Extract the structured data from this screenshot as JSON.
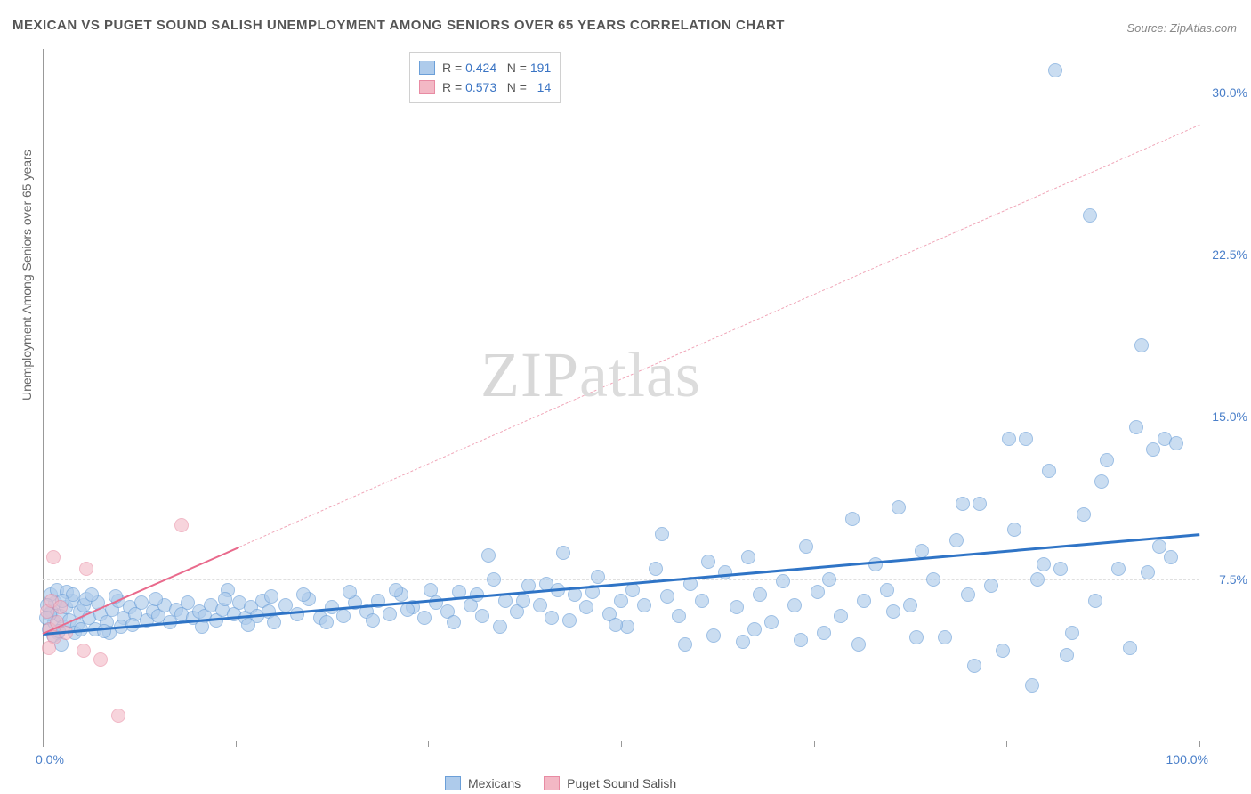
{
  "title": "MEXICAN VS PUGET SOUND SALISH UNEMPLOYMENT AMONG SENIORS OVER 65 YEARS CORRELATION CHART",
  "source": "Source: ZipAtlas.com",
  "ylabel": "Unemployment Among Seniors over 65 years",
  "watermark_a": "ZIP",
  "watermark_b": "atlas",
  "chart": {
    "type": "scatter",
    "xlim": [
      0,
      100
    ],
    "ylim": [
      0,
      32
    ],
    "yticks": [
      7.5,
      15.0,
      22.5,
      30.0
    ],
    "ytick_labels": [
      "7.5%",
      "15.0%",
      "22.5%",
      "30.0%"
    ],
    "xlim_labels": [
      "0.0%",
      "100.0%"
    ],
    "xtick_positions": [
      0,
      16.67,
      33.33,
      50,
      66.67,
      83.33,
      100
    ],
    "background": "#ffffff",
    "grid_color": "#e0e0e0",
    "axis_color": "#999999",
    "label_color": "#4a7fc9",
    "marker_radius": 8,
    "marker_stroke": 1.2
  },
  "series": [
    {
      "name": "Mexicans",
      "fill": "#aecbeb",
      "stroke": "#6b9fd8",
      "fill_opacity": 0.65,
      "r_value": "0.424",
      "n_value": "191",
      "trend": {
        "x1": 0,
        "y1": 5.0,
        "x2": 100,
        "y2": 9.6,
        "color": "#2f74c6",
        "width": 2.5
      },
      "trend_ext": null,
      "points": [
        [
          0.5,
          5.2
        ],
        [
          0.8,
          6.0
        ],
        [
          1.0,
          5.5
        ],
        [
          1.1,
          6.4
        ],
        [
          0.7,
          6.8
        ],
        [
          1.3,
          5.0
        ],
        [
          1.5,
          5.8
        ],
        [
          0.9,
          4.9
        ],
        [
          1.8,
          5.3
        ],
        [
          2.0,
          6.2
        ],
        [
          1.2,
          7.0
        ],
        [
          2.3,
          5.6
        ],
        [
          2.5,
          6.5
        ],
        [
          0.6,
          5.9
        ],
        [
          3.0,
          5.4
        ],
        [
          3.2,
          6.0
        ],
        [
          2.8,
          5.0
        ],
        [
          3.5,
          6.3
        ],
        [
          4.0,
          5.7
        ],
        [
          3.8,
          6.6
        ],
        [
          4.5,
          5.2
        ],
        [
          5.0,
          5.9
        ],
        [
          4.8,
          6.4
        ],
        [
          5.5,
          5.5
        ],
        [
          6.0,
          6.1
        ],
        [
          5.8,
          5.0
        ],
        [
          6.5,
          6.5
        ],
        [
          7.0,
          5.7
        ],
        [
          7.5,
          6.2
        ],
        [
          6.8,
          5.3
        ],
        [
          8.0,
          5.9
        ],
        [
          8.5,
          6.4
        ],
        [
          9.0,
          5.6
        ],
        [
          9.5,
          6.0
        ],
        [
          10.0,
          5.8
        ],
        [
          10.5,
          6.3
        ],
        [
          11.0,
          5.5
        ],
        [
          11.5,
          6.1
        ],
        [
          12.0,
          5.9
        ],
        [
          12.5,
          6.4
        ],
        [
          13.0,
          5.7
        ],
        [
          13.5,
          6.0
        ],
        [
          14.0,
          5.8
        ],
        [
          14.5,
          6.3
        ],
        [
          15.0,
          5.6
        ],
        [
          15.5,
          6.1
        ],
        [
          16.0,
          7.0
        ],
        [
          16.5,
          5.9
        ],
        [
          17.0,
          6.4
        ],
        [
          17.5,
          5.7
        ],
        [
          18.0,
          6.2
        ],
        [
          18.5,
          5.8
        ],
        [
          19.0,
          6.5
        ],
        [
          19.5,
          6.0
        ],
        [
          20.0,
          5.5
        ],
        [
          21.0,
          6.3
        ],
        [
          22.0,
          5.9
        ],
        [
          23.0,
          6.6
        ],
        [
          24.0,
          5.7
        ],
        [
          25.0,
          6.2
        ],
        [
          26.0,
          5.8
        ],
        [
          27.0,
          6.4
        ],
        [
          28.0,
          6.0
        ],
        [
          29.0,
          6.5
        ],
        [
          30.0,
          5.9
        ],
        [
          31.0,
          6.8
        ],
        [
          32.0,
          6.2
        ],
        [
          33.0,
          5.7
        ],
        [
          34.0,
          6.4
        ],
        [
          35.0,
          6.0
        ],
        [
          36.0,
          6.9
        ],
        [
          37.0,
          6.3
        ],
        [
          38.0,
          5.8
        ],
        [
          39.0,
          7.5
        ],
        [
          40.0,
          6.5
        ],
        [
          41.0,
          6.0
        ],
        [
          42.0,
          7.2
        ],
        [
          43.0,
          6.3
        ],
        [
          44.0,
          5.7
        ],
        [
          45.0,
          8.7
        ],
        [
          46.0,
          6.8
        ],
        [
          47.0,
          6.2
        ],
        [
          48.0,
          7.6
        ],
        [
          49.0,
          5.9
        ],
        [
          50.0,
          6.5
        ],
        [
          51.0,
          7.0
        ],
        [
          52.0,
          6.3
        ],
        [
          53.0,
          8.0
        ],
        [
          54.0,
          6.7
        ],
        [
          55.0,
          5.8
        ],
        [
          56.0,
          7.3
        ],
        [
          57.0,
          6.5
        ],
        [
          58.0,
          4.9
        ],
        [
          59.0,
          7.8
        ],
        [
          60.0,
          6.2
        ],
        [
          61.0,
          8.5
        ],
        [
          62.0,
          6.8
        ],
        [
          63.0,
          5.5
        ],
        [
          64.0,
          7.4
        ],
        [
          65.0,
          6.3
        ],
        [
          66.0,
          9.0
        ],
        [
          67.0,
          6.9
        ],
        [
          68.0,
          7.5
        ],
        [
          69.0,
          5.8
        ],
        [
          70.0,
          10.3
        ],
        [
          71.0,
          6.5
        ],
        [
          72.0,
          8.2
        ],
        [
          73.0,
          7.0
        ],
        [
          74.0,
          10.8
        ],
        [
          75.0,
          6.3
        ],
        [
          76.0,
          8.8
        ],
        [
          77.0,
          7.5
        ],
        [
          78.0,
          4.8
        ],
        [
          79.0,
          9.3
        ],
        [
          80.0,
          6.8
        ],
        [
          81.0,
          11.0
        ],
        [
          82.0,
          7.2
        ],
        [
          83.0,
          4.2
        ],
        [
          84.0,
          9.8
        ],
        [
          85.0,
          14.0
        ],
        [
          86.0,
          7.5
        ],
        [
          87.0,
          12.5
        ],
        [
          88.0,
          8.0
        ],
        [
          89.0,
          5.0
        ],
        [
          90.0,
          10.5
        ],
        [
          91.0,
          6.5
        ],
        [
          92.0,
          13.0
        ],
        [
          93.0,
          8.0
        ],
        [
          94.0,
          4.3
        ],
        [
          94.5,
          14.5
        ],
        [
          95.0,
          18.3
        ],
        [
          95.5,
          7.8
        ],
        [
          87.5,
          31.0
        ],
        [
          90.5,
          24.3
        ],
        [
          96.0,
          13.5
        ],
        [
          96.5,
          9.0
        ],
        [
          97.0,
          14.0
        ],
        [
          97.5,
          8.5
        ],
        [
          98.0,
          13.8
        ],
        [
          85.5,
          2.6
        ],
        [
          55.5,
          4.5
        ],
        [
          60.5,
          4.6
        ],
        [
          65.5,
          4.7
        ],
        [
          70.5,
          4.5
        ],
        [
          75.5,
          4.8
        ],
        [
          80.5,
          3.5
        ],
        [
          83.5,
          14.0
        ],
        [
          86.5,
          8.2
        ],
        [
          88.5,
          4.0
        ],
        [
          91.5,
          12.0
        ],
        [
          38.5,
          8.6
        ],
        [
          44.5,
          7.0
        ],
        [
          50.5,
          5.3
        ],
        [
          53.5,
          9.6
        ],
        [
          57.5,
          8.3
        ],
        [
          61.5,
          5.2
        ],
        [
          67.5,
          5.0
        ],
        [
          73.5,
          6.0
        ],
        [
          79.5,
          11.0
        ],
        [
          1.6,
          4.5
        ],
        [
          2.1,
          6.9
        ],
        [
          0.4,
          6.3
        ],
        [
          1.4,
          5.1
        ],
        [
          2.6,
          6.8
        ],
        [
          3.3,
          5.2
        ],
        [
          0.3,
          5.7
        ],
        [
          1.7,
          6.5
        ],
        [
          4.2,
          6.8
        ],
        [
          5.3,
          5.1
        ],
        [
          6.3,
          6.7
        ],
        [
          31.5,
          6.1
        ],
        [
          33.5,
          7.0
        ],
        [
          35.5,
          5.5
        ],
        [
          37.5,
          6.8
        ],
        [
          39.5,
          5.3
        ],
        [
          41.5,
          6.5
        ],
        [
          43.5,
          7.3
        ],
        [
          45.5,
          5.6
        ],
        [
          47.5,
          6.9
        ],
        [
          49.5,
          5.4
        ],
        [
          22.5,
          6.8
        ],
        [
          24.5,
          5.5
        ],
        [
          26.5,
          6.9
        ],
        [
          28.5,
          5.6
        ],
        [
          30.5,
          7.0
        ],
        [
          13.8,
          5.3
        ],
        [
          15.8,
          6.6
        ],
        [
          17.8,
          5.4
        ],
        [
          19.8,
          6.7
        ],
        [
          7.8,
          5.4
        ],
        [
          9.8,
          6.6
        ]
      ]
    },
    {
      "name": "Puget Sound Salish",
      "fill": "#f3b8c5",
      "stroke": "#e88ba3",
      "fill_opacity": 0.6,
      "r_value": "0.573",
      "n_value": "14",
      "trend": {
        "x1": 0,
        "y1": 5.0,
        "x2": 17,
        "y2": 9.0,
        "color": "#e96a8c",
        "width": 2
      },
      "trend_ext": {
        "x1": 17,
        "y1": 9.0,
        "x2": 100,
        "y2": 28.5,
        "color": "#f0a6b8"
      },
      "points": [
        [
          0.4,
          6.0
        ],
        [
          0.6,
          5.2
        ],
        [
          0.8,
          6.5
        ],
        [
          1.0,
          4.8
        ],
        [
          1.2,
          5.5
        ],
        [
          0.5,
          4.3
        ],
        [
          1.5,
          6.2
        ],
        [
          0.9,
          8.5
        ],
        [
          2.0,
          5.0
        ],
        [
          3.5,
          4.2
        ],
        [
          3.8,
          8.0
        ],
        [
          5.0,
          3.8
        ],
        [
          12.0,
          10.0
        ],
        [
          6.5,
          1.2
        ]
      ]
    }
  ],
  "legend_top": {
    "r_label": "R =",
    "n_label": "N ="
  },
  "legend_bottom": {
    "items": [
      "Mexicans",
      "Puget Sound Salish"
    ]
  }
}
